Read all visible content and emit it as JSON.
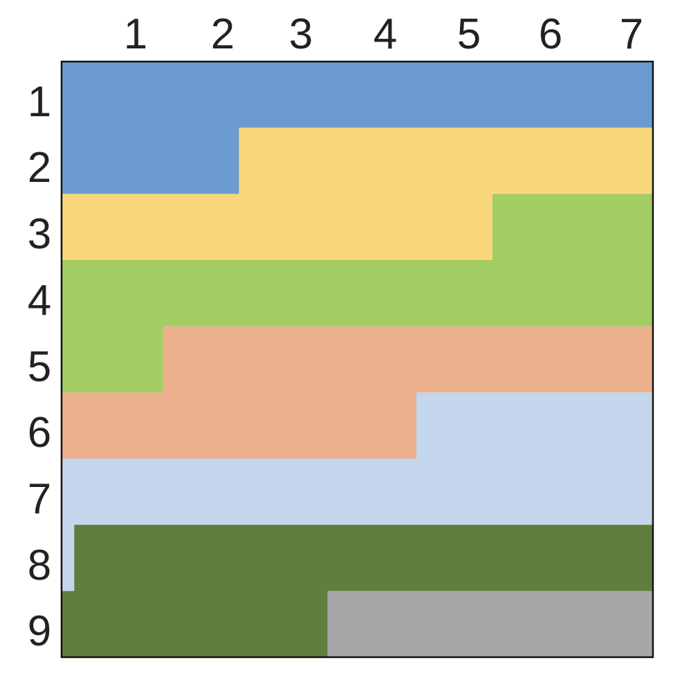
{
  "grid": {
    "columns": [
      "1",
      "2",
      "3",
      "4",
      "5",
      "6",
      "7"
    ],
    "rows": [
      "1",
      "2",
      "3",
      "4",
      "5",
      "6",
      "7",
      "8",
      "9"
    ],
    "palette": {
      "blue": "#6b9bd1",
      "yellow": "#f8d77a",
      "light-green": "#a1cd62",
      "salmon": "#ebb08c",
      "light-blue": "#c3d6eb",
      "dark-green": "#5e7f3d",
      "gray": "#a5a6a5"
    },
    "bands": [
      {
        "name": "blue",
        "from_row": 1,
        "from_col": 1,
        "to_row": 2,
        "to_col": 3.1
      },
      {
        "name": "yellow",
        "from_row": 2,
        "from_col": 3.1,
        "to_row": 3,
        "to_col": 6.1
      },
      {
        "name": "light-green",
        "from_row": 3,
        "from_col": 6.1,
        "to_row": 5,
        "to_col": 2.2
      },
      {
        "name": "salmon",
        "from_row": 5,
        "from_col": 2.2,
        "to_row": 6,
        "to_col": 5.2
      },
      {
        "name": "light-blue",
        "from_row": 6,
        "from_col": 5.2,
        "to_row": 8,
        "to_col": 1.15
      },
      {
        "name": "dark-green",
        "from_row": 8,
        "from_col": 1.15,
        "to_row": 9,
        "to_col": 4.15
      },
      {
        "name": "gray",
        "from_row": 9,
        "from_col": 4.15,
        "to_row": 9,
        "to_col": 7
      }
    ]
  }
}
